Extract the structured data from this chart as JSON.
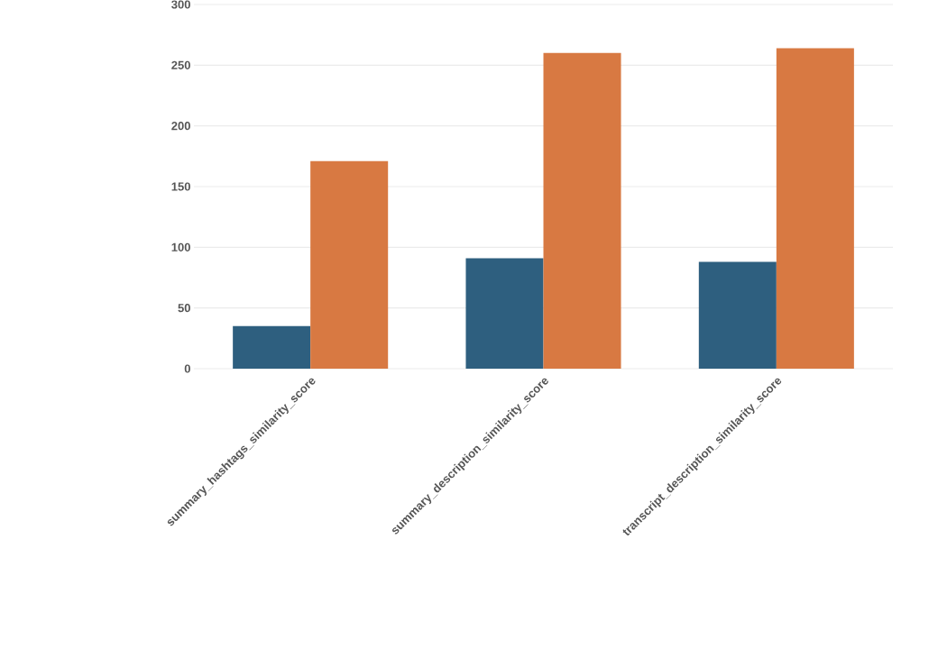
{
  "chart_data": {
    "type": "bar",
    "categories": [
      "summary_hashtags_similarity_score",
      "summary_description_similarity_score",
      "transcript_description_similarity_score"
    ],
    "series": [
      {
        "color": "#2e5f7f",
        "values": [
          35,
          91,
          88
        ]
      },
      {
        "color": "#d87942",
        "values": [
          171,
          260,
          264
        ]
      }
    ],
    "ylim": [
      0,
      300
    ],
    "yticks": [
      0,
      50,
      100,
      150,
      200,
      250,
      300
    ],
    "grid": "y"
  }
}
